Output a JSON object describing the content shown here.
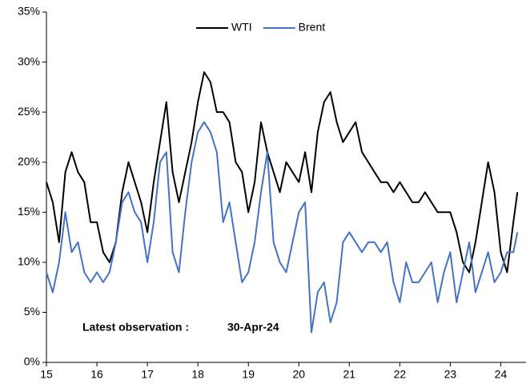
{
  "chart_data": {
    "type": "line",
    "x": [
      15,
      15.125,
      15.25,
      15.375,
      15.5,
      15.625,
      15.75,
      15.875,
      16,
      16.125,
      16.25,
      16.375,
      16.5,
      16.625,
      16.75,
      16.875,
      17,
      17.125,
      17.25,
      17.375,
      17.5,
      17.625,
      17.75,
      17.875,
      18,
      18.125,
      18.25,
      18.375,
      18.5,
      18.625,
      18.75,
      18.875,
      19,
      19.125,
      19.25,
      19.375,
      19.5,
      19.625,
      19.75,
      19.875,
      20,
      20.125,
      20.25,
      20.375,
      20.5,
      20.625,
      20.75,
      20.875,
      21,
      21.125,
      21.25,
      21.375,
      21.5,
      21.625,
      21.75,
      21.875,
      22,
      22.125,
      22.25,
      22.375,
      22.5,
      22.625,
      22.75,
      22.875,
      23,
      23.125,
      23.25,
      23.375,
      23.5,
      23.625,
      23.75,
      23.875,
      24,
      24.125,
      24.25,
      24.33
    ],
    "series": [
      {
        "name": "WTI",
        "color": "#000000",
        "values": [
          18,
          16,
          12,
          19,
          21,
          19,
          18,
          14,
          14,
          11,
          10,
          12,
          17,
          20,
          18,
          16,
          13,
          18,
          22,
          26,
          19,
          16,
          19,
          22,
          26,
          29,
          28,
          25,
          25,
          24,
          20,
          19,
          15,
          18,
          24,
          21,
          19,
          17,
          20,
          19,
          18,
          21,
          17,
          23,
          26,
          27,
          24,
          22,
          23,
          24,
          21,
          20,
          19,
          18,
          18,
          17,
          18,
          17,
          16,
          16,
          17,
          16,
          15,
          15,
          15,
          13,
          10,
          9,
          12,
          16,
          20,
          17,
          11,
          9,
          14,
          17
        ]
      },
      {
        "name": "Brent",
        "color": "#4472c4",
        "values": [
          9,
          7,
          10,
          15,
          11,
          12,
          9,
          8,
          9,
          8,
          9,
          12,
          16,
          17,
          15,
          14,
          10,
          14,
          20,
          21,
          11,
          9,
          15,
          20,
          23,
          24,
          23,
          21,
          14,
          16,
          12,
          8,
          9,
          12,
          17,
          21,
          12,
          10,
          9,
          12,
          15,
          16,
          3,
          7,
          8,
          4,
          6,
          12,
          13,
          12,
          11,
          12,
          12,
          11,
          12,
          8,
          6,
          10,
          8,
          8,
          9,
          10,
          6,
          9,
          11,
          6,
          9,
          12,
          7,
          9,
          11,
          8,
          9,
          11,
          11,
          13
        ]
      }
    ],
    "xlim": [
      15,
      24.5
    ],
    "xticks": [
      15,
      16,
      17,
      18,
      19,
      20,
      21,
      22,
      23,
      24
    ],
    "ylim": [
      0,
      35
    ],
    "yticks": [
      {
        "value": 0,
        "label": "0%"
      },
      {
        "value": 5,
        "label": "5%"
      },
      {
        "value": 10,
        "label": "10%"
      },
      {
        "value": 15,
        "label": "15%"
      },
      {
        "value": 20,
        "label": "20%"
      },
      {
        "value": 25,
        "label": "25%"
      },
      {
        "value": 30,
        "label": "30%"
      },
      {
        "value": 35,
        "label": "35%"
      }
    ],
    "legend": "upper center",
    "annotations": [
      "Latest observation :",
      "30-Apr-24"
    ]
  }
}
